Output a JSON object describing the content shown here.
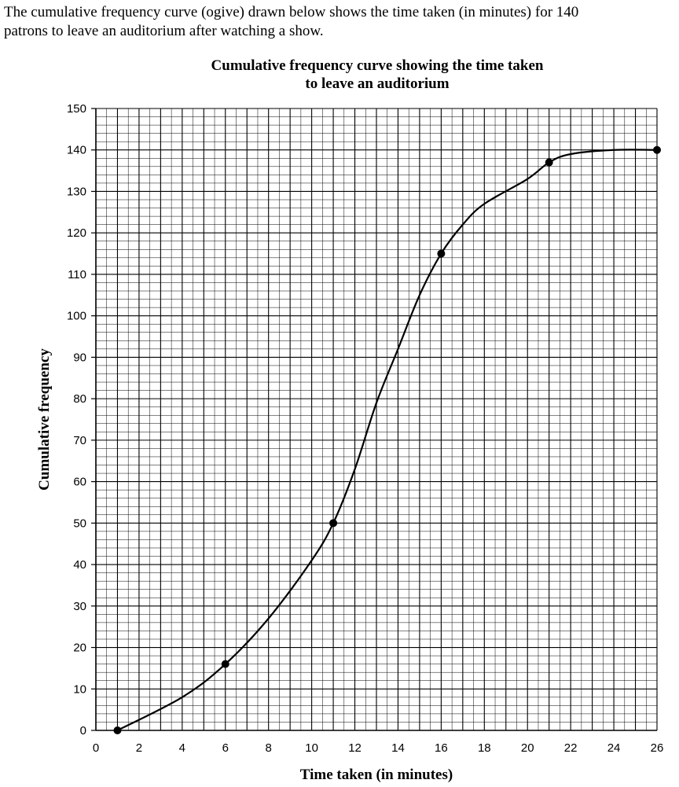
{
  "intro": {
    "line1": "The cumulative frequency curve (ogive) drawn below shows the time taken (in minutes) for 140",
    "line2": "patrons to leave an auditorium after watching a show."
  },
  "chart_data": {
    "type": "line",
    "title_line1": "Cumulative frequency curve showing the time taken",
    "title_line2": "to leave an auditorium",
    "xlabel": "Time taken (in minutes)",
    "ylabel": "Cumulative frequency",
    "xlim": [
      0,
      26
    ],
    "ylim": [
      0,
      150
    ],
    "x_ticks": [
      0,
      2,
      4,
      6,
      8,
      10,
      12,
      14,
      16,
      18,
      20,
      22,
      24,
      26
    ],
    "y_ticks": [
      0,
      10,
      20,
      30,
      40,
      50,
      60,
      70,
      80,
      90,
      100,
      110,
      120,
      130,
      140,
      150
    ],
    "grid": true,
    "points": [
      {
        "x": 1,
        "y": 0
      },
      {
        "x": 6,
        "y": 16
      },
      {
        "x": 11,
        "y": 50
      },
      {
        "x": 16,
        "y": 115
      },
      {
        "x": 21,
        "y": 137
      },
      {
        "x": 26,
        "y": 140
      }
    ],
    "curve": [
      {
        "x": 1,
        "y": 0
      },
      {
        "x": 4,
        "y": 8
      },
      {
        "x": 6,
        "y": 16
      },
      {
        "x": 8,
        "y": 27
      },
      {
        "x": 10,
        "y": 41
      },
      {
        "x": 11,
        "y": 50
      },
      {
        "x": 12,
        "y": 63
      },
      {
        "x": 13,
        "y": 79
      },
      {
        "x": 14,
        "y": 92
      },
      {
        "x": 15,
        "y": 105
      },
      {
        "x": 16,
        "y": 115
      },
      {
        "x": 17,
        "y": 122
      },
      {
        "x": 18,
        "y": 127
      },
      {
        "x": 20,
        "y": 133
      },
      {
        "x": 21,
        "y": 137
      },
      {
        "x": 22,
        "y": 139
      },
      {
        "x": 24,
        "y": 140
      },
      {
        "x": 26,
        "y": 140
      }
    ]
  }
}
